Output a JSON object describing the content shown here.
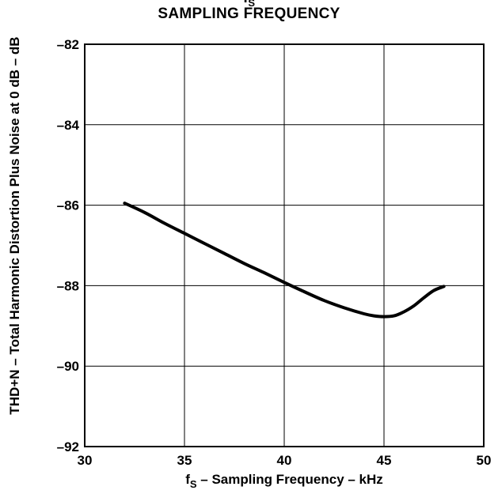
{
  "chart_data": {
    "type": "line",
    "title_top": "f",
    "title_top_sub": "S",
    "title": "SAMPLING FREQUENCY",
    "xlabel_prefix": "f",
    "xlabel_sub": "S",
    "xlabel_suffix": " – Sampling Frequency – kHz",
    "ylabel": "THD+N – Total Harmonic Distortion Plus Noise at 0 dB – dB",
    "xlim": [
      30,
      50
    ],
    "ylim": [
      -92,
      -82
    ],
    "xticks": [
      30,
      35,
      40,
      45,
      50
    ],
    "yticks": [
      -82,
      -84,
      -86,
      -88,
      -90,
      -92
    ],
    "xtick_labels": [
      "30",
      "35",
      "40",
      "45",
      "50"
    ],
    "ytick_labels": [
      "–82",
      "–84",
      "–86",
      "–88",
      "–90",
      "–92"
    ],
    "grid": true,
    "series": [
      {
        "x": [
          32,
          33,
          34,
          35,
          36,
          37,
          38,
          39,
          40,
          41,
          42,
          43,
          44,
          44.5,
          45,
          45.5,
          46,
          46.5,
          47,
          47.5,
          48
        ],
        "y": [
          -85.95,
          -86.18,
          -86.45,
          -86.7,
          -86.95,
          -87.2,
          -87.45,
          -87.68,
          -87.92,
          -88.15,
          -88.37,
          -88.55,
          -88.7,
          -88.75,
          -88.77,
          -88.75,
          -88.65,
          -88.5,
          -88.3,
          -88.12,
          -88.02
        ]
      }
    ]
  }
}
